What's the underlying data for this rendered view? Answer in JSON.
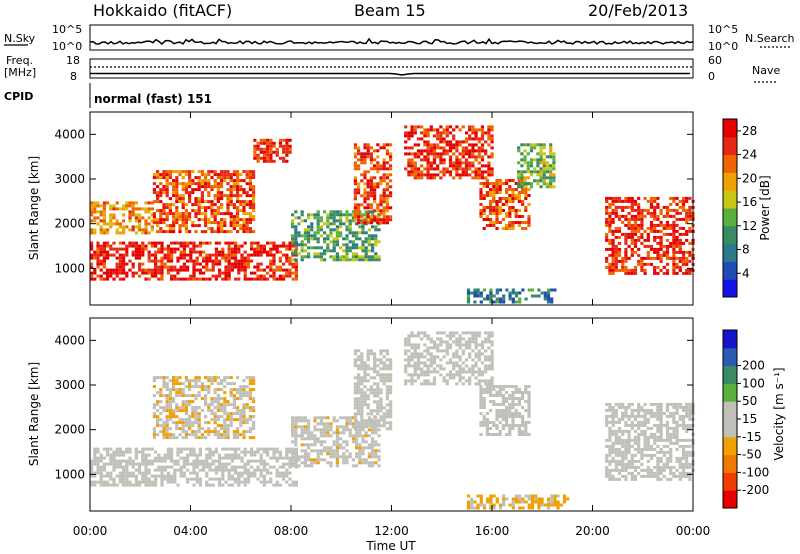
{
  "header": {
    "left": "Hokkaido (fitACF)",
    "center": "Beam 15",
    "right": "20/Feb/2013"
  },
  "aux_panels": {
    "nsky": {
      "label": "N.Sky",
      "left_ticks": [
        "10^5",
        "10^0"
      ],
      "right_ticks": [
        "10^5",
        "10^0"
      ],
      "right_label": "N.Search"
    },
    "freq": {
      "label_line1": "Freq.",
      "label_line2": "[MHz]",
      "left_ticks": [
        "18",
        "8"
      ],
      "right_ticks": [
        "60",
        "0"
      ],
      "right_label": "Nave"
    },
    "cpid": {
      "label": "CPID",
      "text": "normal (fast) 151"
    }
  },
  "colors": {
    "power_scale": [
      "#1414e6",
      "#1e4cb4",
      "#2a7a8c",
      "#3a8a64",
      "#5ab03c",
      "#c8c814",
      "#f0a000",
      "#f06400",
      "#e62814",
      "#e60000"
    ],
    "velocity_scale": [
      "#e60000",
      "#f03c00",
      "#f07800",
      "#f0a000",
      "#c0c0b8",
      "#c0c0b8",
      "#5ab03c",
      "#3a8a64",
      "#2a5ab4",
      "#1414c8"
    ]
  },
  "chart_data": [
    {
      "type": "heatmap",
      "panel": "power",
      "ylabel": "Slant Range [km]",
      "xlabel": "Time UT",
      "x_ticks": [
        "00:00",
        "04:00",
        "08:00",
        "12:00",
        "16:00",
        "20:00",
        "00:00"
      ],
      "x_range_hours": [
        0,
        24
      ],
      "y_ticks": [
        1000,
        2000,
        3000,
        4000
      ],
      "ylim": [
        180,
        4500
      ],
      "colorbar_label": "Power [dB]",
      "colorbar_ticks": [
        4,
        8,
        12,
        16,
        20,
        24,
        28
      ],
      "colorbar_range": [
        0,
        30
      ],
      "echo_regions": [
        {
          "t_start": 0.0,
          "t_end": 8.2,
          "r_start": 750,
          "r_end": 1600,
          "value": 27
        },
        {
          "t_start": 0.0,
          "t_end": 2.5,
          "r_start": 1800,
          "r_end": 2500,
          "value": 20
        },
        {
          "t_start": 2.5,
          "t_end": 6.5,
          "r_start": 1800,
          "r_end": 3200,
          "value": 24
        },
        {
          "t_start": 6.5,
          "t_end": 8.0,
          "r_start": 3400,
          "r_end": 3900,
          "value": 26
        },
        {
          "t_start": 8.0,
          "t_end": 11.5,
          "r_start": 1200,
          "r_end": 2300,
          "value": 12
        },
        {
          "t_start": 10.5,
          "t_end": 12.0,
          "r_start": 2000,
          "r_end": 3800,
          "value": 25
        },
        {
          "t_start": 12.5,
          "t_end": 16.0,
          "r_start": 3000,
          "r_end": 4200,
          "value": 26
        },
        {
          "t_start": 15.5,
          "t_end": 17.5,
          "r_start": 1900,
          "r_end": 3000,
          "value": 24
        },
        {
          "t_start": 17.0,
          "t_end": 18.5,
          "r_start": 2800,
          "r_end": 3800,
          "value": 14
        },
        {
          "t_start": 15.0,
          "t_end": 18.5,
          "r_start": 250,
          "r_end": 550,
          "value": 8
        },
        {
          "t_start": 20.5,
          "t_end": 24.0,
          "r_start": 900,
          "r_end": 2600,
          "value": 26
        }
      ]
    },
    {
      "type": "heatmap",
      "panel": "velocity",
      "ylabel": "Slant Range [km]",
      "xlabel": "Time UT",
      "x_ticks": [
        "00:00",
        "04:00",
        "08:00",
        "12:00",
        "16:00",
        "20:00",
        "00:00"
      ],
      "x_range_hours": [
        0,
        24
      ],
      "y_ticks": [
        1000,
        2000,
        3000,
        4000
      ],
      "ylim": [
        180,
        4500
      ],
      "colorbar_label": "Velocity [m s⁻¹]",
      "colorbar_ticks": [
        -200,
        -100,
        -50,
        -15,
        15,
        50,
        100,
        200
      ],
      "colorbar_range": [
        -250,
        250
      ],
      "echo_regions": [
        {
          "t_start": 0.0,
          "t_end": 8.2,
          "r_start": 750,
          "r_end": 1600,
          "value": 0
        },
        {
          "t_start": 2.5,
          "t_end": 6.5,
          "r_start": 1800,
          "r_end": 3200,
          "value": -40
        },
        {
          "t_start": 8.0,
          "t_end": 11.5,
          "r_start": 1200,
          "r_end": 2300,
          "value": -30
        },
        {
          "t_start": 10.5,
          "t_end": 12.0,
          "r_start": 2000,
          "r_end": 3800,
          "value": 0
        },
        {
          "t_start": 12.5,
          "t_end": 16.0,
          "r_start": 3000,
          "r_end": 4200,
          "value": 0
        },
        {
          "t_start": 15.5,
          "t_end": 17.5,
          "r_start": 1900,
          "r_end": 3000,
          "value": 0
        },
        {
          "t_start": 15.0,
          "t_end": 19.0,
          "r_start": 250,
          "r_end": 550,
          "value": -60
        },
        {
          "t_start": 20.5,
          "t_end": 24.0,
          "r_start": 900,
          "r_end": 2600,
          "value": 0
        }
      ]
    }
  ],
  "axis_label": "Time UT"
}
